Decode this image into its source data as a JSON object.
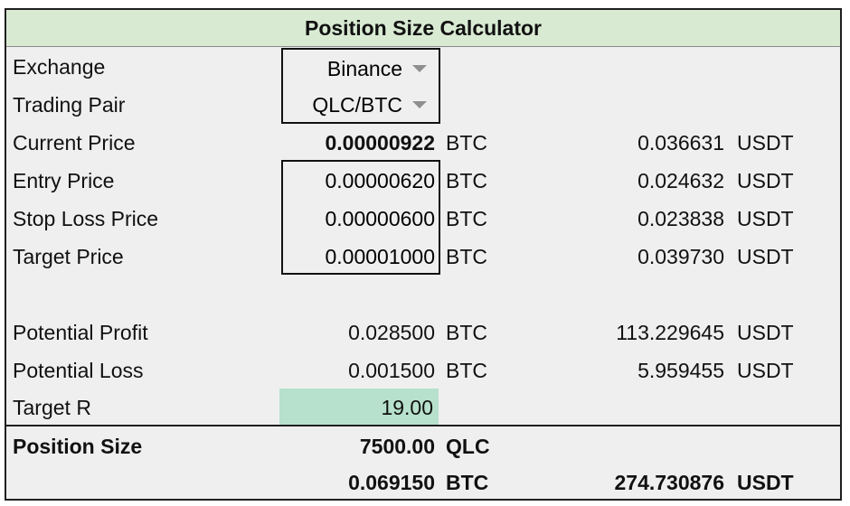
{
  "title": "Position Size Calculator",
  "exchange": {
    "label": "Exchange",
    "value": "Binance"
  },
  "trading_pair": {
    "label": "Trading Pair",
    "value": "QLC/BTC"
  },
  "current_price": {
    "label": "Current Price",
    "btc": "0.00000922",
    "btc_unit": "BTC",
    "usdt": "0.036631",
    "usdt_unit": "USDT"
  },
  "entry_price": {
    "label": "Entry Price",
    "btc": "0.00000620",
    "btc_unit": "BTC",
    "usdt": "0.024632",
    "usdt_unit": "USDT"
  },
  "stop_loss_price": {
    "label": "Stop Loss Price",
    "btc": "0.00000600",
    "btc_unit": "BTC",
    "usdt": "0.023838",
    "usdt_unit": "USDT"
  },
  "target_price": {
    "label": "Target Price",
    "btc": "0.00001000",
    "btc_unit": "BTC",
    "usdt": "0.039730",
    "usdt_unit": "USDT"
  },
  "potential_profit": {
    "label": "Potential Profit",
    "btc": "0.028500",
    "btc_unit": "BTC",
    "usdt": "113.229645",
    "usdt_unit": "USDT"
  },
  "potential_loss": {
    "label": "Potential Loss",
    "btc": "0.001500",
    "btc_unit": "BTC",
    "usdt": "5.959455",
    "usdt_unit": "USDT"
  },
  "target_r": {
    "label": "Target R",
    "value": "19.00"
  },
  "position_size": {
    "label": "Position Size",
    "qty": "7500.00",
    "qty_unit": "QLC",
    "btc": "0.069150",
    "btc_unit": "BTC",
    "usdt": "274.730876",
    "usdt_unit": "USDT"
  },
  "colors": {
    "title_bg": "#d9ead3",
    "target_r_bg": "#b7e1cd",
    "sheet_bg": "#efefef"
  }
}
